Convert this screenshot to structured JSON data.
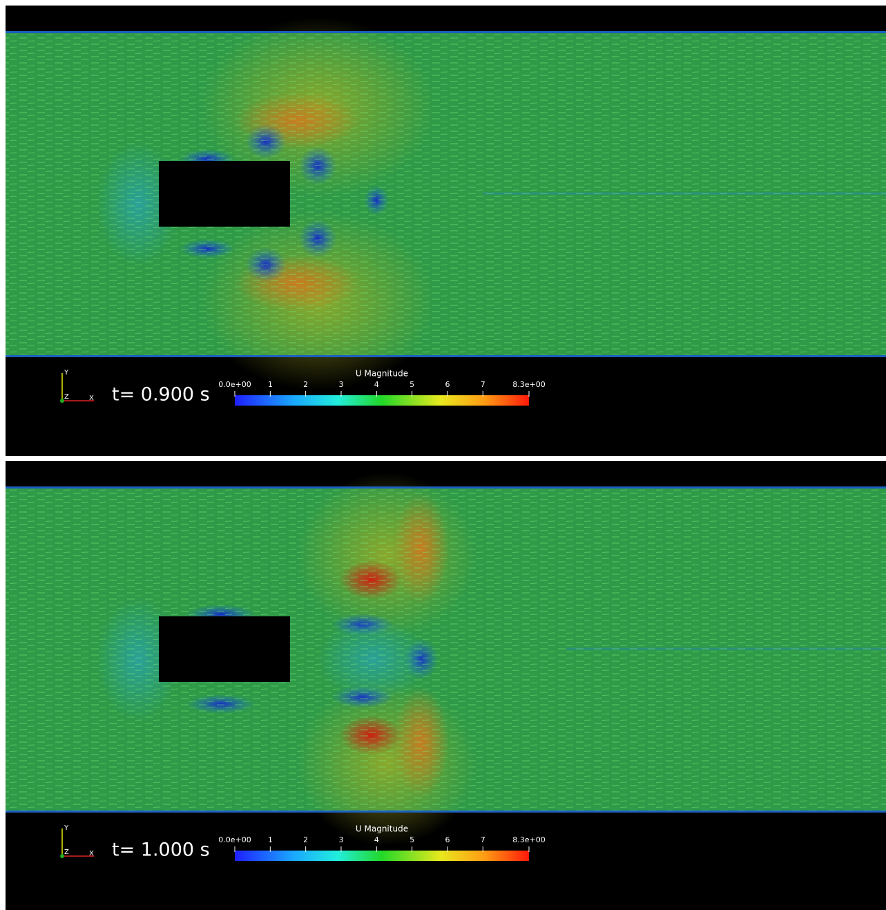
{
  "panels": [
    {
      "time_label": "t= 0.900 s",
      "axes": {
        "y": "Y",
        "z": "Z",
        "x": "X"
      },
      "colorbar": {
        "title": "U Magnitude",
        "range": [
          0,
          8.3
        ],
        "ticks": [
          {
            "value": 0,
            "label": "0.0e+00"
          },
          1,
          2,
          3,
          4,
          5,
          6,
          7,
          {
            "value": 8.3,
            "label": "8.3e+00"
          }
        ]
      }
    },
    {
      "time_label": "t= 1.000 s",
      "axes": {
        "y": "Y",
        "z": "Z",
        "x": "X"
      },
      "colorbar": {
        "title": "U Magnitude",
        "range": [
          0,
          8.3
        ],
        "ticks": [
          {
            "value": 0,
            "label": "0.0e+00"
          },
          1,
          2,
          3,
          4,
          5,
          6,
          7,
          {
            "value": 8.3,
            "label": "8.3e+00"
          }
        ]
      }
    }
  ]
}
